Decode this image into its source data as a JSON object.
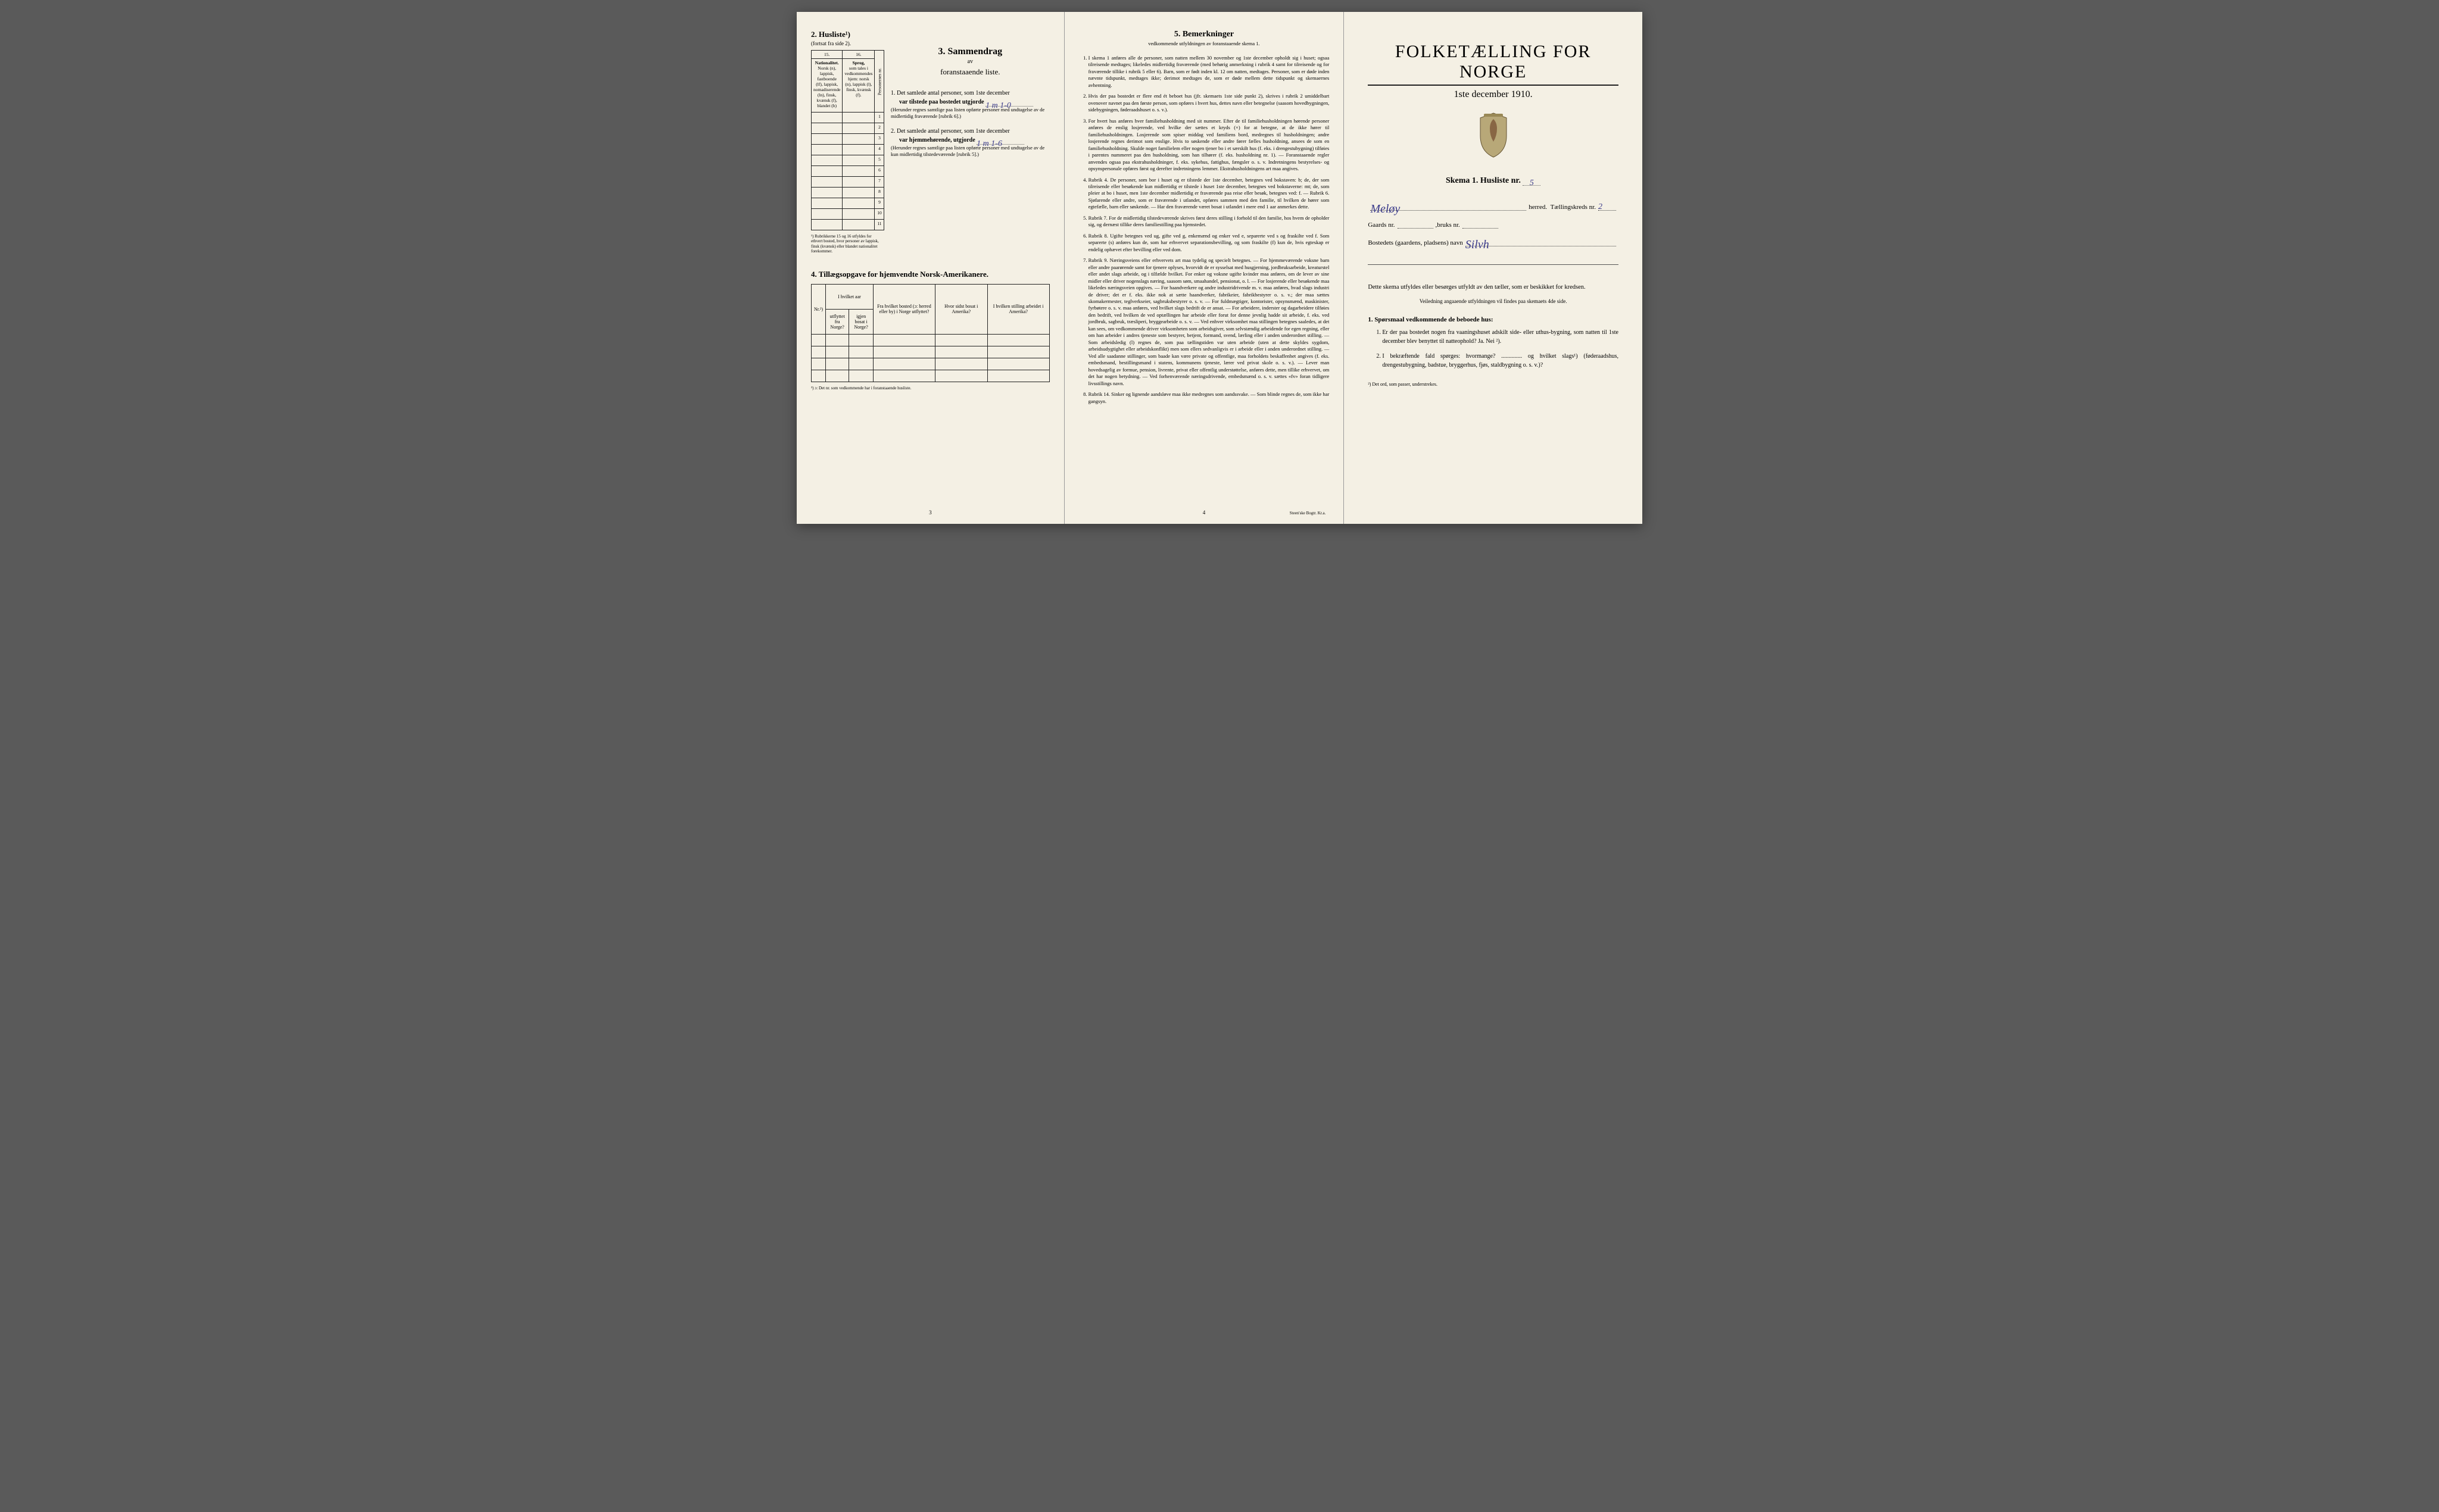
{
  "colors": {
    "paper": "#f4f0e4",
    "ink": "#1a1a1a",
    "handwriting": "#3a3a8a",
    "bg": "#5a5a5a"
  },
  "left": {
    "section2_title": "2. Husliste¹)",
    "section2_sub": "(fortsat fra side 2).",
    "col15": "15.",
    "col16": "16.",
    "col15_head": "Nationalitet.",
    "col16_head": "Sprog,",
    "col15_body": "Norsk (n), lappisk, fastboende (lf), lappisk, nomadiserende (ln), finsk, kvænsk (f), blandet (b)",
    "col16_body": "som tales i vedkommendes hjem: norsk (n), lappisk (l), finsk, kvænsk (f).",
    "col_person": "Personernes nr.",
    "rows": [
      "1",
      "2",
      "3",
      "4",
      "5",
      "6",
      "7",
      "8",
      "9",
      "10",
      "11"
    ],
    "table_footnote": "¹) Rubrikkerne 15 og 16 utfyldes for ethvert bosted, hvor personer av lappisk, finsk (kvænsk) eller blandet nationalitet forekommer.",
    "section3_title": "3. Sammendrag",
    "section3_av": "av",
    "section3_sub": "foranstaaende liste.",
    "item1": "1. Det samlede antal personer, som 1ste december",
    "item1b": "var tilstede paa bostedet utgjorde",
    "item1_val": "1 m 1-0",
    "item1_paren": "(Herunder regnes samtlige paa listen opførte personer med undtagelse av de midlertidig fraværende [rubrik 6].)",
    "item2": "2. Det samlede antal personer, som 1ste december",
    "item2b": "var hjemmehørende, utgjorde",
    "item2_val": "1 m 1-6",
    "item2_paren": "(Herunder regnes samtlige paa listen opførte personer med undtagelse av de kun midlertidig tilstedeværende [rubrik 5].)",
    "section4_title": "4. Tillægsopgave for hjemvendte Norsk-Amerikanere.",
    "t_cols": [
      "Nr.²)",
      "I hvilket aar",
      "Fra hvilket bosted (ɔ: herred eller by) i Norge utflyttet?",
      "Hvor sidst bosat i Amerika?",
      "I hvilken stilling arbeidet i Amerika?"
    ],
    "t_sub_a": "utflyttet fra Norge?",
    "t_sub_b": "igjen bosat i Norge?",
    "section4_footnote": "²) ɔ: Det nr. som vedkommende har i foranstaaende husliste.",
    "page_num": "3"
  },
  "mid": {
    "title": "5. Bemerkninger",
    "sub": "vedkommende utfyldningen av foranstaaende skema 1.",
    "rules": [
      "I skema 1 anføres alle de personer, som natten mellem 30 november og 1ste december opholdt sig i huset; ogsaa tilreisende medtages; likeledes midlertidig fraværende (med behørig anmerkning i rubrik 4 samt for tilreisende og for fraværende tillike i rubrik 5 eller 6). Barn, som er født inden kl. 12 om natten, medtages. Personer, som er døde inden nævnte tidspunkt, medtages ikke; derimot medtages de, som er døde mellem dette tidspunkt og skemaernes avhentning.",
      "Hvis der paa bostedet er flere end ét beboet hus (jfr. skemaets 1ste side punkt 2), skrives i rubrik 2 umiddelbart ovenover navnet paa den første person, som opføres i hvert hus, dettes navn eller betegnelse (saasom hovedbygningen, sidebygningen, føderaadshuset o. s. v.).",
      "For hvert hus anføres hver familiehusholdning med sit nummer. Efter de til familiehusholdningen hørende personer anføres de enslig losjerende, ved hvilke der sættes et kryds (×) for at betegne, at de ikke hører til familiehusholdningen. Losjerende som spiser middag ved familiens bord, medregnes til husholdningen; andre losjerende regnes derimot som enslige. Hvis to søskende eller andre fører fælles husholdning, ansees de som en familiehusholdning. Skulde noget familielem eller nogen tjener bo i et særskilt hus (f. eks. i drengestubygning) tilføies i parentes nummeret paa den husholdning, som han tilhører (f. eks. husholdning nr. 1). — Foranstaaende regler anvendes ogsaa paa ekstrahusholdninger, f. eks. sykehus, fattighus, fængsler o. s. v. Indretningens bestyrelses- og opsynspersonale opføres først og derefter indretningens lemmer. Ekstrahusholdningens art maa angives.",
      "Rubrik 4. De personer, som bor i huset og er tilstede der 1ste december, betegnes ved bokstaven: b; de, der som tilreisende eller besøkende kun midlertidig er tilstede i huset 1ste december, betegnes ved bokstaverne: mt; de, som pleier at bo i huset, men 1ste december midlertidig er fraværende paa reise eller besøk, betegnes ved: f. — Rubrik 6. Sjøfarende eller andre, som er fraværende i utlandet, opføres sammen med den familie, til hvilken de hører som egtefælle, barn eller søskende. — Har den fraværende været bosat i utlandet i mere end 1 aar anmerkes dette.",
      "Rubrik 7. For de midlertidig tilstedeværende skrives først deres stilling i forhold til den familie, hos hvem de opholder sig, og dernæst tillike deres familiestilling paa hjemstedet.",
      "Rubrik 8. Ugifte betegnes ved ug, gifte ved g, enkemænd og enker ved e, separerte ved s og fraskilte ved f. Som separerte (s) anføres kun de, som har erhvervet separationsbevilling, og som fraskilte (f) kun de, hvis egteskap er endelig ophævet efter bevilling eller ved dom.",
      "Rubrik 9. Næringsveiens eller erhvervets art maa tydelig og specielt betegnes. — For hjemmeværende voksne barn eller andre paarørende samt for tjenere oplyses, hvorvidt de er sysselsat med husgjerning, jordbruksarbeide, kreaturstel eller andet slags arbeide, og i tilfælde hvilket. For enker og voksne ugifte kvinder maa anføres, om de lever av sine midler eller driver nogenslags næring, saasom søm, smaahandel, pensionat, o. l. — For losjerende eller besøkende maa likeledes næringsveien opgives. — For haandverkere og andre industridrivende m. v. maa anføres, hvad slags industri de driver; det er f. eks. ikke nok at sætte haandverker, fabrikeier, fabrikbestyrer o. s. v.; der maa sættes skomakermester, teglverkseier, sagbruksbestyrer o. s. v. — For fuldmægtiger, kontorister, opsynsmænd, maskinister, fyrbøtere o. s. v. maa anføres, ved hvilket slags bedrift de er ansat. — For arbeidere, inderster og dagarbeidere tilføies den bedrift, ved hvilken de ved optællingen har arbeide eller forut for denne jevnlig hadde sit arbeide, f. eks. ved jordbruk, sagbruk, træsliperi, bryggearbeide o. s. v. — Ved enhver virksomhet maa stillingen betegnes saaledes, at det kan sees, om vedkommende driver virksomheten som arbeidsgiver, som selvstændig arbeidende for egen regning, eller om han arbeider i andres tjeneste som bestyrer, betjent, formand, svend, lærling eller i anden underordnet stilling. — Som arbeidsledig (l) regnes de, som paa tællingstiden var uten arbeide (uten at dette skyldes sygdom, arbeidsudygtighet eller arbeidskonflikt) men som ellers sedvanligvis er i arbeide eller i anden underordnet stilling. — Ved alle saadanne stillinger, som baade kan være private og offentlige, maa forholdets beskaffenhet angives (f. eks. embedsmand, bestillingsmand i statens, kommunens tjeneste, lærer ved privat skole o. s. v.). — Lever man hovedsagelig av formue, pension, livrente, privat eller offentlig understøttelse, anføres dette, men tillike erhvervet, om det har nogen betydning. — Ved forhenværende næringsdrivende, embedsmænd o. s. v. sættes «fv» foran tidligere livsstillings navn.",
      "Rubrik 14. Sinker og lignende aandsløve maa ikke medregnes som aandssvake. — Som blinde regnes de, som ikke har gangsyn."
    ],
    "page_num": "4",
    "printer": "Steen'ske Bogtr. Kr.a."
  },
  "right": {
    "main_title": "FOLKETÆLLING FOR NORGE",
    "date": "1ste december 1910.",
    "skema": "Skema 1.  Husliste nr.",
    "husliste_nr": "5",
    "herred_val": "Meløy",
    "herred_lbl": "herred.",
    "tk_lbl": "Tællingskreds nr.",
    "tk_val": "2",
    "gaards_lbl": "Gaards nr.",
    "bruks_lbl": "bruks nr.",
    "bosted_lbl": "Bostedets (gaardens, pladsens) navn",
    "bosted_val": "Silvh",
    "body1": "Dette skema utfyldes eller besørges utfyldt av den tæller, som er beskikket for kredsen.",
    "body2": "Veiledning angaaende utfyldningen vil findes paa skemaets 4de side.",
    "q_title": "1. Spørsmaal vedkommende de beboede hus:",
    "q1": "Er der paa bostedet nogen fra vaaningshuset adskilt side- eller uthus-bygning, som natten til 1ste december blev benyttet til natteophold?   Ja.   Nei ²).",
    "q2": "I bekræftende fald spørges: hvormange? .............. og hvilket slags¹) (føderaadshus, drengestubygning, badstue, bryggerhus, fjøs, staldbygning o. s. v.)?",
    "footnote": "²) Det ord, som passer, understrekes."
  }
}
